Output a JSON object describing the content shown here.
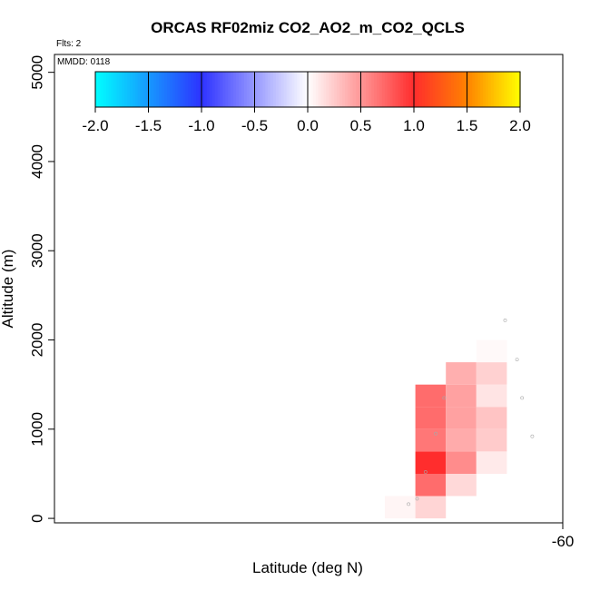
{
  "chart_data": {
    "type": "heatmap",
    "title": "ORCAS RF02miz CO2_AO2_m_CO2_QCLS",
    "annotations": {
      "flights": "Flts: 2",
      "date": "MMDD: 0118"
    },
    "xlabel": "Latitude (deg N)",
    "ylabel": "Altitude (m)",
    "xlim": [
      -63.0,
      -60.0
    ],
    "ylim": [
      -50,
      5200
    ],
    "x_ticks": [
      -60
    ],
    "x_tick_labels": [
      "-60"
    ],
    "y_ticks": [
      0,
      1000,
      2000,
      3000,
      4000,
      5000
    ],
    "y_tick_labels": [
      "0",
      "1000",
      "2000",
      "3000",
      "4000",
      "5000"
    ],
    "colorbar": {
      "min": -2.0,
      "max": 2.0,
      "ticks": [
        -2.0,
        -1.5,
        -1.0,
        -0.5,
        0.0,
        0.5,
        1.0,
        1.5,
        2.0
      ],
      "tick_labels": [
        "-2.0",
        "-1.5",
        "-1.0",
        "-0.5",
        "0.0",
        "0.5",
        "1.0",
        "1.5",
        "2.0"
      ]
    },
    "cells": [
      {
        "lat": [
          -61.05,
          -60.87
        ],
        "alt": [
          0,
          250
        ],
        "value": 0.05
      },
      {
        "lat": [
          -60.87,
          -60.69
        ],
        "alt": [
          0,
          250
        ],
        "value": 0.2
      },
      {
        "lat": [
          -60.87,
          -60.69
        ],
        "alt": [
          250,
          500
        ],
        "value": 0.7
      },
      {
        "lat": [
          -60.87,
          -60.69
        ],
        "alt": [
          500,
          750
        ],
        "value": 1.0
      },
      {
        "lat": [
          -60.87,
          -60.69
        ],
        "alt": [
          750,
          1000
        ],
        "value": 0.65
      },
      {
        "lat": [
          -60.87,
          -60.69
        ],
        "alt": [
          1000,
          1250
        ],
        "value": 0.7
      },
      {
        "lat": [
          -60.87,
          -60.69
        ],
        "alt": [
          1250,
          1500
        ],
        "value": 0.7
      },
      {
        "lat": [
          -60.69,
          -60.51
        ],
        "alt": [
          250,
          500
        ],
        "value": 0.18
      },
      {
        "lat": [
          -60.69,
          -60.51
        ],
        "alt": [
          500,
          750
        ],
        "value": 0.55
      },
      {
        "lat": [
          -60.69,
          -60.51
        ],
        "alt": [
          750,
          1000
        ],
        "value": 0.4
      },
      {
        "lat": [
          -60.69,
          -60.51
        ],
        "alt": [
          1000,
          1250
        ],
        "value": 0.45
      },
      {
        "lat": [
          -60.69,
          -60.51
        ],
        "alt": [
          1250,
          1500
        ],
        "value": 0.45
      },
      {
        "lat": [
          -60.69,
          -60.51
        ],
        "alt": [
          1500,
          1750
        ],
        "value": 0.38
      },
      {
        "lat": [
          -60.51,
          -60.33
        ],
        "alt": [
          500,
          750
        ],
        "value": 0.1
      },
      {
        "lat": [
          -60.51,
          -60.33
        ],
        "alt": [
          750,
          1000
        ],
        "value": 0.25
      },
      {
        "lat": [
          -60.51,
          -60.33
        ],
        "alt": [
          1000,
          1250
        ],
        "value": 0.28
      },
      {
        "lat": [
          -60.51,
          -60.33
        ],
        "alt": [
          1250,
          1500
        ],
        "value": 0.13
      },
      {
        "lat": [
          -60.51,
          -60.33
        ],
        "alt": [
          1500,
          1750
        ],
        "value": 0.22
      },
      {
        "lat": [
          -60.51,
          -60.33
        ],
        "alt": [
          1750,
          2000
        ],
        "value": 0.03
      }
    ],
    "samples": [
      {
        "lat": -60.91,
        "alt": 160
      },
      {
        "lat": -60.86,
        "alt": 220
      },
      {
        "lat": -60.81,
        "alt": 520
      },
      {
        "lat": -60.75,
        "alt": 950
      },
      {
        "lat": -60.7,
        "alt": 1350
      },
      {
        "lat": -60.34,
        "alt": 2220
      },
      {
        "lat": -60.27,
        "alt": 1780
      },
      {
        "lat": -60.24,
        "alt": 1350
      },
      {
        "lat": -60.18,
        "alt": 920
      }
    ]
  }
}
